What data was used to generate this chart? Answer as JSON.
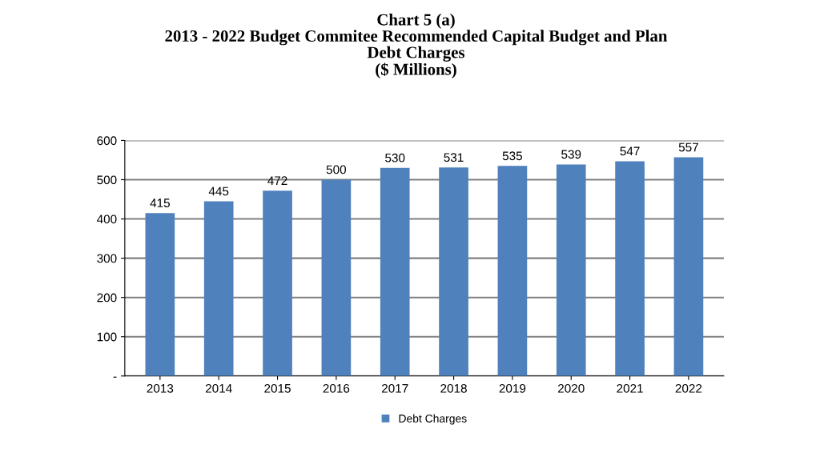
{
  "chart_data": {
    "type": "bar",
    "title": "Chart 5 (a)\n2013 - 2022 Budget Commitee Recommended Capital Budget and Plan\nDebt Charges\n($ Millions)",
    "categories": [
      "2013",
      "2014",
      "2015",
      "2016",
      "2017",
      "2018",
      "2019",
      "2020",
      "2021",
      "2022"
    ],
    "series": [
      {
        "name": "Debt Charges",
        "color": "#4f81bd",
        "values": [
          415,
          445,
          472,
          500,
          530,
          531,
          535,
          539,
          547,
          557
        ]
      }
    ],
    "ylim": [
      0,
      600
    ],
    "yticks": [
      {
        "value": 0,
        "label": "-"
      },
      100,
      200,
      300,
      400,
      500,
      600
    ],
    "grid": "y",
    "legend": "bottom",
    "data_labels": true
  }
}
